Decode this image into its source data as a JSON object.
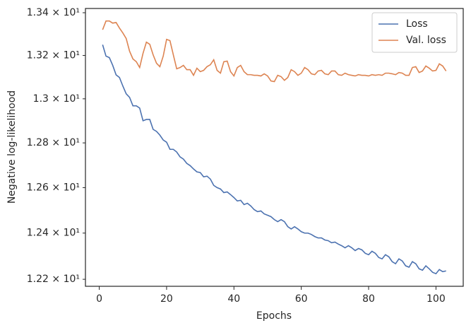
{
  "chart_data": {
    "type": "line",
    "xlabel": "Epochs",
    "ylabel": "Negative log-likelihood",
    "x": [
      1,
      2,
      3,
      4,
      5,
      6,
      7,
      8,
      9,
      10,
      11,
      12,
      13,
      14,
      15,
      16,
      17,
      18,
      19,
      20,
      21,
      22,
      23,
      24,
      25,
      26,
      27,
      28,
      29,
      30,
      31,
      32,
      33,
      34,
      35,
      36,
      37,
      38,
      39,
      40,
      41,
      42,
      43,
      44,
      45,
      46,
      47,
      48,
      49,
      50,
      51,
      52,
      53,
      54,
      55,
      56,
      57,
      58,
      59,
      60,
      61,
      62,
      63,
      64,
      65,
      66,
      67,
      68,
      69,
      70,
      71,
      72,
      73,
      74,
      75,
      76,
      77,
      78,
      79,
      80,
      81,
      82,
      83,
      84,
      85,
      86,
      87,
      88,
      89,
      90,
      91,
      92,
      93,
      94,
      95,
      96,
      97,
      98,
      99,
      100,
      101,
      102,
      103
    ],
    "series": [
      {
        "name": "Loss",
        "color": "#4c72b0",
        "values": [
          13.25,
          13.197,
          13.19,
          13.154,
          13.11,
          13.098,
          13.059,
          13.023,
          13.007,
          12.968,
          12.968,
          12.958,
          12.9,
          12.906,
          12.906,
          12.861,
          12.852,
          12.835,
          12.813,
          12.803,
          12.771,
          12.771,
          12.759,
          12.737,
          12.727,
          12.708,
          12.698,
          12.683,
          12.67,
          12.667,
          12.648,
          12.651,
          12.638,
          12.61,
          12.6,
          12.594,
          12.578,
          12.581,
          12.569,
          12.556,
          12.541,
          12.544,
          12.525,
          12.531,
          12.519,
          12.503,
          12.494,
          12.497,
          12.484,
          12.478,
          12.472,
          12.459,
          12.45,
          12.459,
          12.45,
          12.428,
          12.418,
          12.428,
          12.418,
          12.406,
          12.4,
          12.4,
          12.394,
          12.385,
          12.379,
          12.379,
          12.37,
          12.367,
          12.358,
          12.361,
          12.352,
          12.345,
          12.336,
          12.345,
          12.336,
          12.324,
          12.333,
          12.327,
          12.312,
          12.306,
          12.321,
          12.312,
          12.294,
          12.288,
          12.306,
          12.297,
          12.276,
          12.267,
          12.288,
          12.279,
          12.258,
          12.252,
          12.276,
          12.267,
          12.245,
          12.239,
          12.258,
          12.245,
          12.23,
          12.224,
          12.242,
          12.233,
          12.236
        ]
      },
      {
        "name": "Val. loss",
        "color": "#dd8452",
        "values": [
          13.32,
          13.361,
          13.361,
          13.351,
          13.354,
          13.328,
          13.305,
          13.279,
          13.22,
          13.184,
          13.171,
          13.144,
          13.21,
          13.262,
          13.252,
          13.203,
          13.164,
          13.148,
          13.197,
          13.275,
          13.269,
          13.203,
          13.138,
          13.144,
          13.154,
          13.134,
          13.134,
          13.108,
          13.141,
          13.125,
          13.131,
          13.148,
          13.157,
          13.18,
          13.131,
          13.118,
          13.171,
          13.174,
          13.125,
          13.105,
          13.144,
          13.154,
          13.125,
          13.111,
          13.111,
          13.108,
          13.108,
          13.105,
          13.115,
          13.105,
          13.082,
          13.079,
          13.108,
          13.102,
          13.085,
          13.098,
          13.134,
          13.125,
          13.108,
          13.118,
          13.144,
          13.134,
          13.115,
          13.111,
          13.128,
          13.131,
          13.115,
          13.111,
          13.128,
          13.128,
          13.111,
          13.108,
          13.118,
          13.111,
          13.108,
          13.105,
          13.111,
          13.108,
          13.108,
          13.105,
          13.111,
          13.108,
          13.111,
          13.108,
          13.118,
          13.118,
          13.115,
          13.111,
          13.121,
          13.118,
          13.108,
          13.108,
          13.144,
          13.148,
          13.121,
          13.128,
          13.151,
          13.141,
          13.128,
          13.131,
          13.161,
          13.151,
          13.128
        ]
      }
    ],
    "xlim": [
      -4.1,
      108.1
    ],
    "xticks": [
      0,
      20,
      40,
      60,
      80,
      100
    ],
    "ylim": [
      12.17,
      13.42
    ],
    "ylog": true,
    "yticks": [
      {
        "value": 12.2,
        "label": "1.22 × 10¹"
      },
      {
        "value": 12.4,
        "label": "1.24 × 10¹"
      },
      {
        "value": 12.6,
        "label": "1.26 × 10¹"
      },
      {
        "value": 12.8,
        "label": "1.28 × 10¹"
      },
      {
        "value": 13.0,
        "label": "1.3 × 10¹"
      },
      {
        "value": 13.2,
        "label": "1.32 × 10¹"
      },
      {
        "value": 13.4,
        "label": "1.34 × 10¹"
      }
    ],
    "legend": "upper right"
  }
}
